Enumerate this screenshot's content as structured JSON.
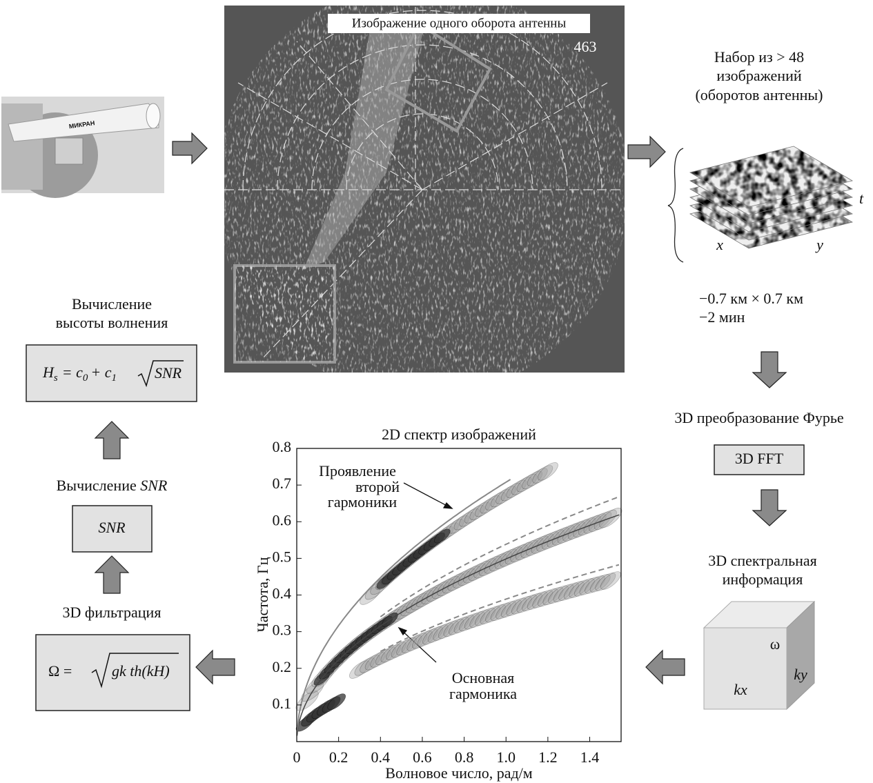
{
  "radar": {
    "brand": "МИКРАН",
    "image_title": "Изображение одного оборота антенны",
    "frame_number": "463"
  },
  "stack": {
    "caption": [
      "Набор из > 48",
      "изображений",
      "(оборотов антенны)"
    ],
    "axis_t": "t",
    "axis_x": "x",
    "axis_y": "y",
    "notes": [
      "−0.7 км × 0.7 км",
      "−2 мин"
    ]
  },
  "fft": {
    "caption": "3D преобразование Фурье",
    "box": "3D FFT"
  },
  "spectral_info": {
    "caption": [
      "3D спектральная",
      "информация"
    ],
    "omega": "ω",
    "kx": "kx",
    "ky": "ky"
  },
  "filtering": {
    "caption": "3D фильтрация",
    "formula": {
      "lhs": "Ω =",
      "radicand": "gk th(kH)"
    }
  },
  "snr": {
    "caption": [
      "Вычисление ",
      "SNR"
    ],
    "box": "SNR"
  },
  "wave_height": {
    "caption": [
      "Вычисление",
      "высоты волнения"
    ],
    "formula": {
      "lhs": "H",
      "lhs_sub": "s",
      "eq": "= c",
      "c0_sub": "0",
      "plus": "+ c",
      "c1_sub": "1",
      "radicand": "SNR"
    }
  },
  "spectrum": {
    "title": "2D спектр изображений",
    "xlabel": "Волновое число, рад/м",
    "ylabel": "Частота, Гц",
    "xlim": [
      0,
      1.55
    ],
    "ylim": [
      0,
      0.8
    ],
    "xticks": [
      0,
      0.2,
      0.4,
      0.6,
      0.8,
      {
        "value": 1,
        "label": "1.0"
      },
      1.2,
      1.4
    ],
    "yticks": [
      0.1,
      0.2,
      0.3,
      0.4,
      0.5,
      0.6,
      0.7,
      0.8
    ],
    "annotation_second": [
      "Проявление",
      "второй",
      "гармоники"
    ],
    "annotation_main": [
      "Основная",
      "гармоника"
    ]
  }
}
